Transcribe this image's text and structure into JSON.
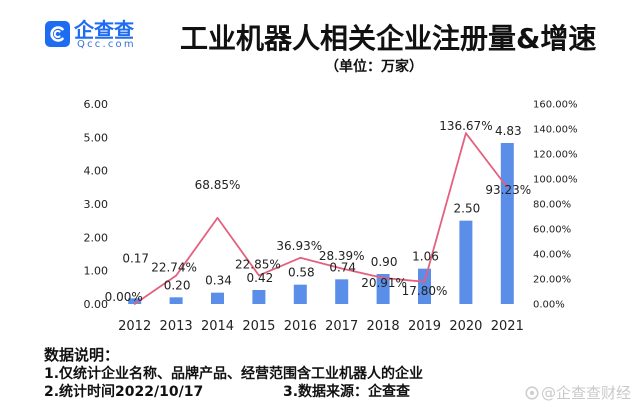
{
  "logo": {
    "name": "企查查",
    "domain": "Qcc.com"
  },
  "chart_data": {
    "type": "bar",
    "title": "工业机器人相关企业注册量&增速",
    "subtitle": "（单位：万家）",
    "categories": [
      "2012",
      "2013",
      "2014",
      "2015",
      "2016",
      "2017",
      "2018",
      "2019",
      "2020",
      "2021"
    ],
    "series": [
      {
        "type": "bar",
        "y_axis": "left",
        "values": [
          0.17,
          0.2,
          0.34,
          0.42,
          0.58,
          0.74,
          0.9,
          1.06,
          2.5,
          4.83
        ],
        "labels": [
          "0.17",
          "0.20",
          "0.34",
          "0.42",
          "0.58",
          "0.74",
          "0.90",
          "1.06",
          "2.50",
          "4.83"
        ]
      },
      {
        "type": "line",
        "y_axis": "right",
        "values": [
          0.0,
          22.74,
          68.85,
          22.85,
          36.93,
          28.39,
          20.91,
          17.8,
          136.67,
          93.23
        ],
        "labels": [
          "0.00%",
          "22.74%",
          "68.85%",
          "22.85%",
          "36.93%",
          "28.39%",
          "20.91%",
          "17.80%",
          "136.67%",
          "93.23%"
        ]
      }
    ],
    "y_left": {
      "range": [
        0,
        6
      ],
      "ticks": [
        "0.00",
        "1.00",
        "2.00",
        "3.00",
        "4.00",
        "5.00",
        "6.00"
      ]
    },
    "y_right": {
      "range": [
        0,
        160
      ],
      "ticks": [
        "0.00%",
        "20.00%",
        "40.00%",
        "60.00%",
        "80.00%",
        "100.00%",
        "120.00%",
        "140.00%",
        "160.00%"
      ]
    },
    "grid": false,
    "legend": "none",
    "colors": {
      "bar": "#5a8ee8",
      "line": "#e3617f"
    }
  },
  "notes": {
    "heading": "数据说明：",
    "items": [
      "1.仅统计企业名称、品牌产品、经营范围含工业机器人的企业",
      "2.统计时间2022/10/17",
      "3.数据来源：企查查"
    ]
  },
  "watermark": "@企查查财经",
  "colors": {
    "brand": "#1e6cf1"
  }
}
